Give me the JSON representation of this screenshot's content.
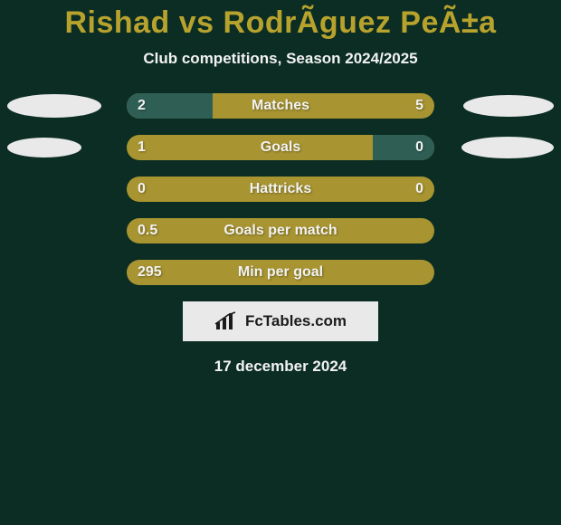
{
  "background_color": "#0b2d23",
  "text_color": "#f2f2f2",
  "title": "Rishad vs RodrÃ­guez PeÃ±a",
  "title_color": "#b7a22e",
  "title_fontsize": 34,
  "subtitle": "Club competitions, Season 2024/2025",
  "subtitle_fontsize": 17,
  "bar_track_color": "#a89531",
  "bar_segment_left_color": "#2f5f54",
  "bar_segment_right_color": "#2f5f54",
  "side_oval_color": "#e9e9e9",
  "value_text_color": "#f2f2f2",
  "label_text_color": "#f2f2f2",
  "branding_bg": "#e9e9e9",
  "branding_text_color": "#1b1b1b",
  "branding_text": "FcTables.com",
  "datestamp": "17 december 2024",
  "rows": [
    {
      "label": "Matches",
      "left_value": "2",
      "right_value": "5",
      "left_fill_pct": 28,
      "right_fill_pct": 0,
      "left_oval_w": 104,
      "left_oval_h": 26,
      "right_oval_w": 100,
      "right_oval_h": 24
    },
    {
      "label": "Goals",
      "left_value": "1",
      "right_value": "0",
      "left_fill_pct": 0,
      "right_fill_pct": 20,
      "left_oval_w": 82,
      "left_oval_h": 22,
      "right_oval_w": 102,
      "right_oval_h": 24
    },
    {
      "label": "Hattricks",
      "left_value": "0",
      "right_value": "0",
      "left_fill_pct": 0,
      "right_fill_pct": 0,
      "left_oval_w": 0,
      "left_oval_h": 0,
      "right_oval_w": 0,
      "right_oval_h": 0
    },
    {
      "label": "Goals per match",
      "left_value": "0.5",
      "right_value": "",
      "left_fill_pct": 0,
      "right_fill_pct": 0,
      "left_oval_w": 0,
      "left_oval_h": 0,
      "right_oval_w": 0,
      "right_oval_h": 0
    },
    {
      "label": "Min per goal",
      "left_value": "295",
      "right_value": "",
      "left_fill_pct": 0,
      "right_fill_pct": 0,
      "left_oval_w": 0,
      "left_oval_h": 0,
      "right_oval_w": 0,
      "right_oval_h": 0
    }
  ]
}
